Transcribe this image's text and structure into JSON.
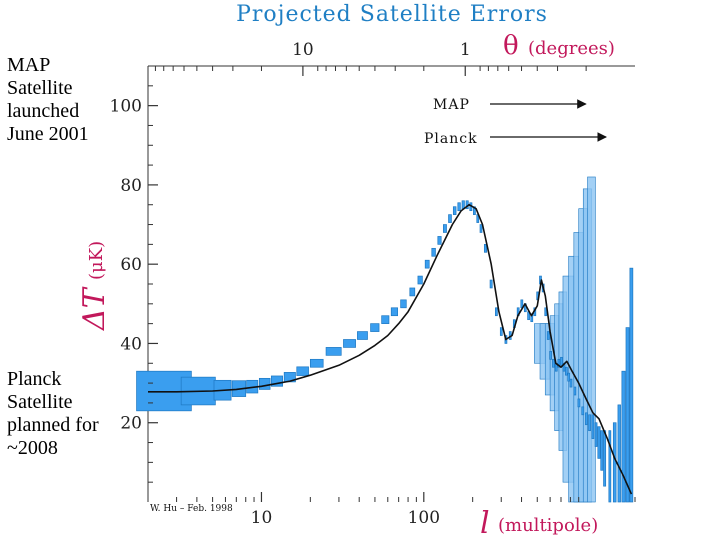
{
  "side_notes": {
    "top": "MAP Satellite launched June 2001",
    "bottom": "Planck Satellite planned for ~2008"
  },
  "chart_data": {
    "type": "line",
    "title": "Projected Satellite Errors",
    "xlabel": {
      "symbol": "l",
      "unit": "(multipole)"
    },
    "top_xlabel": {
      "symbol": "θ",
      "unit": "(degrees)"
    },
    "ylabel": {
      "symbol": "ΔT",
      "unit": "(μK)"
    },
    "x_scale": "log",
    "xlim": [
      2,
      2000
    ],
    "ylim": [
      0,
      110
    ],
    "x_ticks": [
      10,
      100
    ],
    "x_tick_labels": [
      "10",
      "100"
    ],
    "top_ticks": [
      18,
      180
    ],
    "top_tick_labels": [
      "10",
      "1"
    ],
    "y_ticks": [
      20,
      40,
      60,
      80,
      100
    ],
    "y_tick_labels": [
      "20",
      "40",
      "60",
      "80",
      "100"
    ],
    "annotations": [
      {
        "label": "MAP",
        "target_l": 1050,
        "target_dT": 101
      },
      {
        "label": "Planck",
        "target_l": 1400,
        "target_dT": 92
      }
    ],
    "credit": "W. Hu – Feb. 1998",
    "colors": {
      "title": "#1f7fc4",
      "axis_label": "#c2185b",
      "box_fill": "#3a9eef",
      "box_edge": "#1e78c2",
      "map_box": "#8cc4f2",
      "curve": "#111111"
    },
    "series": [
      {
        "name": "theory",
        "x": [
          2,
          3,
          5,
          7,
          10,
          15,
          20,
          30,
          40,
          50,
          60,
          70,
          80,
          100,
          120,
          150,
          170,
          190,
          210,
          230,
          260,
          290,
          320,
          350,
          380,
          420,
          460,
          500,
          530,
          560,
          600,
          650,
          700,
          760,
          820,
          900,
          1000,
          1100,
          1200,
          1350,
          1500,
          1700,
          1900
        ],
        "y": [
          27.8,
          27.8,
          28.0,
          28.4,
          29.2,
          30.5,
          32.0,
          34.5,
          37.0,
          39.5,
          42.0,
          45.0,
          48.0,
          55.0,
          62.0,
          70.0,
          73.5,
          75.0,
          74.0,
          70.0,
          60.0,
          48.0,
          41.0,
          42.0,
          47.0,
          50.0,
          47.0,
          49.5,
          56.0,
          52.0,
          43.0,
          35.0,
          34.0,
          35.5,
          33.0,
          30.0,
          26.0,
          22.5,
          21.0,
          16.0,
          11.0,
          6.5,
          2.0
        ]
      },
      {
        "name": "MAP errors",
        "x": [
          520,
          560,
          600,
          640,
          680,
          720,
          780,
          840,
          900,
          960,
          1020,
          1080
        ],
        "dx": [
          40,
          40,
          40,
          40,
          40,
          40,
          60,
          60,
          60,
          60,
          60,
          60
        ],
        "y": [
          40,
          38,
          36,
          35,
          34,
          33,
          31,
          30,
          28,
          26,
          24,
          22
        ],
        "dy": [
          5,
          7,
          9,
          12,
          16,
          20,
          26,
          32,
          40,
          48,
          55,
          60
        ]
      },
      {
        "name": "Planck errors",
        "x": [
          2.7,
          4.2,
          5.8,
          7.3,
          8.8,
          10.5,
          12.5,
          15,
          18,
          22,
          28,
          35,
          42,
          50,
          58,
          66,
          75,
          85,
          95,
          105,
          115,
          125,
          135,
          145,
          155,
          165,
          175,
          185,
          195,
          205,
          215,
          225,
          240,
          260,
          280,
          300,
          320,
          340,
          360,
          380,
          400,
          420,
          440,
          460,
          480,
          500,
          520,
          540,
          560,
          580,
          600,
          625,
          650,
          675,
          700,
          725,
          750,
          775,
          800,
          850,
          900,
          950,
          1000,
          1050,
          1100,
          1150,
          1200,
          1250,
          1300,
          1400,
          1500,
          1600,
          1700,
          1800,
          1900
        ],
        "dx": [
          1.0,
          1.0,
          0.7,
          0.7,
          0.7,
          0.8,
          1.0,
          1.2,
          1.5,
          2.0,
          3.0,
          3.0,
          3.0,
          3.0,
          3.0,
          3.0,
          3.0,
          3.0,
          3.0,
          3.0,
          3.0,
          3.0,
          3.0,
          3.0,
          3.0,
          3.0,
          3.0,
          3.0,
          3.0,
          3.0,
          3.0,
          3.0,
          4.0,
          4.0,
          4.0,
          4.0,
          4.0,
          4.0,
          4.0,
          4.0,
          4.0,
          4.0,
          4.0,
          4.0,
          4.0,
          4.0,
          4.0,
          4.0,
          4.0,
          4.0,
          4.0,
          5.0,
          5.0,
          5.0,
          5.0,
          5.0,
          5.0,
          5.0,
          5.0,
          10.0,
          10.0,
          10.0,
          10.0,
          15.0,
          15.0,
          15.0,
          20.0,
          20.0,
          20.0,
          20.0,
          30.0,
          30.0,
          40.0,
          40.0,
          40.0
        ],
        "y": [
          28,
          28,
          28.2,
          28.6,
          29.1,
          29.8,
          30.5,
          31.5,
          33,
          35,
          38,
          40,
          42,
          44,
          46,
          48,
          50,
          53,
          56,
          60,
          63,
          66,
          69,
          71.5,
          73.5,
          74.5,
          75,
          75,
          74.5,
          73.5,
          71.5,
          69,
          64,
          55,
          48,
          43,
          41,
          42,
          45,
          48,
          50,
          49,
          47,
          46.5,
          48,
          52,
          56,
          54,
          48,
          42,
          37,
          35,
          34,
          35,
          35.5,
          34,
          33,
          31.5,
          30,
          28,
          25,
          23,
          21,
          20,
          19,
          17,
          15,
          13,
          11,
          8,
          6,
          4.5,
          3,
          2,
          1
        ],
        "dy": [
          5.0,
          3.5,
          2.5,
          2.0,
          1.6,
          1.4,
          1.3,
          1.2,
          1.1,
          1.0,
          1.0,
          1.0,
          1.0,
          1.0,
          1.0,
          1.0,
          1.0,
          1.0,
          1.0,
          1.0,
          1.0,
          1.0,
          1.0,
          1.0,
          1.0,
          1.0,
          1.0,
          1.0,
          1.0,
          1.0,
          1.0,
          1.0,
          1.0,
          1.0,
          1.0,
          1.0,
          1.0,
          1.0,
          1.0,
          1.0,
          1.0,
          1.0,
          1.0,
          1.0,
          1.0,
          1.0,
          1.0,
          1.0,
          1.0,
          1.0,
          1.0,
          1.0,
          1.0,
          1.0,
          1.0,
          1.0,
          1.0,
          1.0,
          1.0,
          1.0,
          1.0,
          1.0,
          1.5,
          2.0,
          3.0,
          3.0,
          4.0,
          5.0,
          7.0,
          10.0,
          14.0,
          20.0,
          30.0,
          42.0,
          58.0
        ]
      }
    ]
  }
}
